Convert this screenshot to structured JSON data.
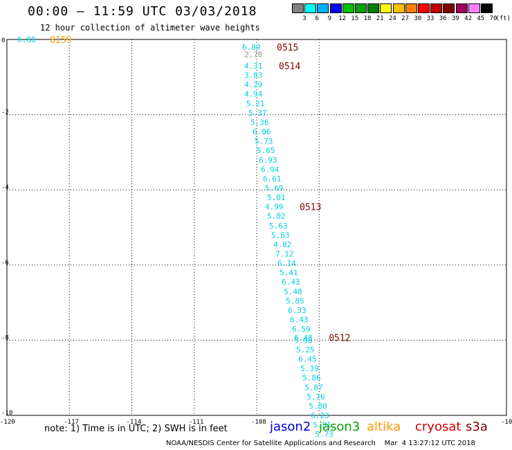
{
  "header": {
    "title": "00:00 – 11:59 UTC 03/03/2018",
    "subtitle": "12 hour collection of altimeter wave heights"
  },
  "colorbar": {
    "unit": "(ft)",
    "colors": [
      "#808080",
      "#00ffff",
      "#00b0ff",
      "#0000ff",
      "#00c000",
      "#00a000",
      "#008000",
      "#ffff00",
      "#ffc000",
      "#ff8000",
      "#ff0000",
      "#c00000",
      "#800000",
      "#a00060",
      "#ff80ff",
      "#000000"
    ],
    "labels": [
      "3",
      "6",
      "9",
      "12",
      "15",
      "18",
      "21",
      "24",
      "27",
      "30",
      "33",
      "36",
      "39",
      "42",
      "45",
      "70"
    ]
  },
  "chart_data": {
    "type": "scatter",
    "xlim": [
      -120,
      -96
    ],
    "ylim": [
      -10,
      0
    ],
    "xticks": [
      "-120",
      "-117",
      "-114",
      "-111",
      "-108",
      "-105"
    ],
    "yticks": [
      "0",
      "-2",
      "-4",
      "-6",
      "-8",
      "-10"
    ],
    "points": [
      {
        "lon": -119.5,
        "lat": 0,
        "v": "6.88",
        "c": "#00d0e0"
      },
      {
        "lon": -108.7,
        "lat": -0.2,
        "v": "6.89",
        "c": "#00d0e0"
      },
      {
        "lon": -108.6,
        "lat": -0.4,
        "v": "2.70",
        "c": "#909090"
      },
      {
        "lon": -108.6,
        "lat": -0.7,
        "v": "4.31",
        "c": "#00d0e0"
      },
      {
        "lon": -108.6,
        "lat": -0.95,
        "v": "3.83",
        "c": "#00d0e0"
      },
      {
        "lon": -108.6,
        "lat": -1.2,
        "v": "4.29",
        "c": "#00d0e0"
      },
      {
        "lon": -108.6,
        "lat": -1.45,
        "v": "4.94",
        "c": "#00d0e0"
      },
      {
        "lon": -108.5,
        "lat": -1.7,
        "v": "5.21",
        "c": "#00d0e0"
      },
      {
        "lon": -108.4,
        "lat": -1.95,
        "v": "5.37",
        "c": "#00d0e0"
      },
      {
        "lon": -108.3,
        "lat": -2.2,
        "v": "5.36",
        "c": "#00d0e0"
      },
      {
        "lon": -108.2,
        "lat": -2.45,
        "v": "6.06",
        "c": "#00d0e0"
      },
      {
        "lon": -108.1,
        "lat": -2.7,
        "v": "5.73",
        "c": "#00d0e0"
      },
      {
        "lon": -108.0,
        "lat": -2.95,
        "v": "5.65",
        "c": "#00d0e0"
      },
      {
        "lon": -107.9,
        "lat": -3.2,
        "v": "6.93",
        "c": "#00d0e0"
      },
      {
        "lon": -107.8,
        "lat": -3.45,
        "v": "6.94",
        "c": "#00d0e0"
      },
      {
        "lon": -107.7,
        "lat": -3.7,
        "v": "6.61",
        "c": "#00d0e0"
      },
      {
        "lon": -107.6,
        "lat": -3.95,
        "v": "5.69",
        "c": "#00d0e0"
      },
      {
        "lon": -107.5,
        "lat": -4.2,
        "v": "5.01",
        "c": "#00d0e0"
      },
      {
        "lon": -107.6,
        "lat": -4.45,
        "v": "4.99",
        "c": "#00d0e0"
      },
      {
        "lon": -107.5,
        "lat": -4.7,
        "v": "5.02",
        "c": "#00d0e0"
      },
      {
        "lon": -107.4,
        "lat": -4.95,
        "v": "5.63",
        "c": "#00d0e0"
      },
      {
        "lon": -107.3,
        "lat": -5.2,
        "v": "5.63",
        "c": "#00d0e0"
      },
      {
        "lon": -107.2,
        "lat": -5.45,
        "v": "4.82",
        "c": "#00d0e0"
      },
      {
        "lon": -107.1,
        "lat": -5.7,
        "v": "7.12",
        "c": "#00d0e0"
      },
      {
        "lon": -107.0,
        "lat": -5.95,
        "v": "6.14",
        "c": "#00d0e0"
      },
      {
        "lon": -106.9,
        "lat": -6.2,
        "v": "5.41",
        "c": "#00d0e0"
      },
      {
        "lon": -106.8,
        "lat": -6.45,
        "v": "6.43",
        "c": "#00d0e0"
      },
      {
        "lon": -106.7,
        "lat": -6.7,
        "v": "5.48",
        "c": "#00d0e0"
      },
      {
        "lon": -106.6,
        "lat": -6.95,
        "v": "5.85",
        "c": "#00d0e0"
      },
      {
        "lon": -106.5,
        "lat": -7.2,
        "v": "6.33",
        "c": "#00d0e0"
      },
      {
        "lon": -106.4,
        "lat": -7.45,
        "v": "6.43",
        "c": "#00d0e0"
      },
      {
        "lon": -106.3,
        "lat": -7.7,
        "v": "6.59",
        "c": "#00d0e0"
      },
      {
        "lon": -106.2,
        "lat": -7.93,
        "v": "6.48",
        "c": "#00d0e0"
      },
      {
        "lon": -106.2,
        "lat": -8.0,
        "v": "5.98",
        "c": "#00d0e0"
      },
      {
        "lon": -106.1,
        "lat": -8.25,
        "v": "5.25",
        "c": "#00d0e0"
      },
      {
        "lon": -106.0,
        "lat": -8.5,
        "v": "6.45",
        "c": "#00d0e0"
      },
      {
        "lon": -105.9,
        "lat": -8.75,
        "v": "5.39",
        "c": "#00d0e0"
      },
      {
        "lon": -105.8,
        "lat": -9.0,
        "v": "5.86",
        "c": "#00d0e0"
      },
      {
        "lon": -105.7,
        "lat": -9.25,
        "v": "5.87",
        "c": "#00d0e0"
      },
      {
        "lon": -105.6,
        "lat": -9.5,
        "v": "5.76",
        "c": "#00d0e0"
      },
      {
        "lon": -105.5,
        "lat": -9.75,
        "v": "5.80",
        "c": "#00d0e0"
      },
      {
        "lon": -105.4,
        "lat": -10.0,
        "v": "6.23",
        "c": "#00d0e0"
      },
      {
        "lon": -105.3,
        "lat": -10.25,
        "v": "5.81",
        "c": "#00d0e0"
      },
      {
        "lon": -105.2,
        "lat": -10.5,
        "v": "5.73",
        "c": "#00d0e0"
      }
    ],
    "time_labels": [
      {
        "lon": -118.8,
        "lat": 0,
        "t": "0159",
        "c": "#ff9900"
      },
      {
        "lon": -107.9,
        "lat": -0.2,
        "t": "0515",
        "c": "#800000"
      },
      {
        "lon": -107.8,
        "lat": -0.7,
        "t": "0514",
        "c": "#800000"
      },
      {
        "lon": -106.8,
        "lat": -4.45,
        "t": "0513",
        "c": "#800000"
      },
      {
        "lon": -105.4,
        "lat": -7.93,
        "t": "0512",
        "c": "#800000"
      }
    ]
  },
  "legend": {
    "note": "note: 1) Time is in UTC; 2) SWH is in feet",
    "sats": [
      {
        "name": "jason2",
        "color": "#0000cc"
      },
      {
        "name": "jason3",
        "color": "#00a000"
      },
      {
        "name": "altika",
        "color": "#ff9900"
      },
      {
        "name": "cryosat",
        "color": "#cc0000"
      },
      {
        "name": "s3a",
        "color": "#800000"
      }
    ]
  },
  "footer": "NOAA/NESDIS Center for Satellite Applications and Research    Mar  4 13:27:12 UTC 2018"
}
